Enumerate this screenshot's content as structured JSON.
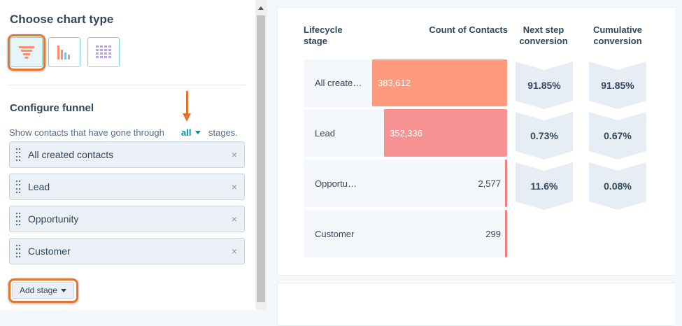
{
  "left_panel": {
    "chart_type_title": "Choose chart type",
    "chart_types": [
      {
        "name": "funnel",
        "selected": true
      },
      {
        "name": "bar",
        "selected": false
      },
      {
        "name": "table",
        "selected": false
      }
    ],
    "configure_title": "Configure funnel",
    "show_prefix": "Show contacts that have gone through",
    "show_option": "all",
    "show_suffix": "stages.",
    "stages": [
      {
        "label": "All created contacts"
      },
      {
        "label": "Lead"
      },
      {
        "label": "Opportunity"
      },
      {
        "label": "Customer"
      }
    ],
    "remove_glyph": "×",
    "add_stage_label": "Add stage"
  },
  "report": {
    "columns": {
      "lifecycle": "Lifecycle stage",
      "count": "Count of Contacts",
      "next_step": "Next step conversion",
      "cumulative": "Cumulative conversion"
    },
    "rows": [
      {
        "label": "All created contacts",
        "display_label": "All create…",
        "count": "383,612"
      },
      {
        "label": "Lead",
        "display_label": "Lead",
        "count": "352,336"
      },
      {
        "label": "Opportunity",
        "display_label": "Opportu…",
        "count": "2,577"
      },
      {
        "label": "Customer",
        "display_label": "Customer",
        "count": "299"
      }
    ],
    "next_step_conversions": [
      "91.85%",
      "0.73%",
      "11.6%"
    ],
    "cumulative_conversions": [
      "91.85%",
      "0.67%",
      "0.08%"
    ]
  },
  "colors": {
    "accent_orange": "#e0762f",
    "bar_primary": "#ff9b7c",
    "bar_secondary": "#f89191",
    "link_teal": "#0091ae"
  },
  "icons": [
    "funnel-icon",
    "bar-chart-icon",
    "table-grid-icon",
    "drag-handle-icon",
    "close-icon",
    "caret-down-icon",
    "annotation-arrow-icon"
  ]
}
